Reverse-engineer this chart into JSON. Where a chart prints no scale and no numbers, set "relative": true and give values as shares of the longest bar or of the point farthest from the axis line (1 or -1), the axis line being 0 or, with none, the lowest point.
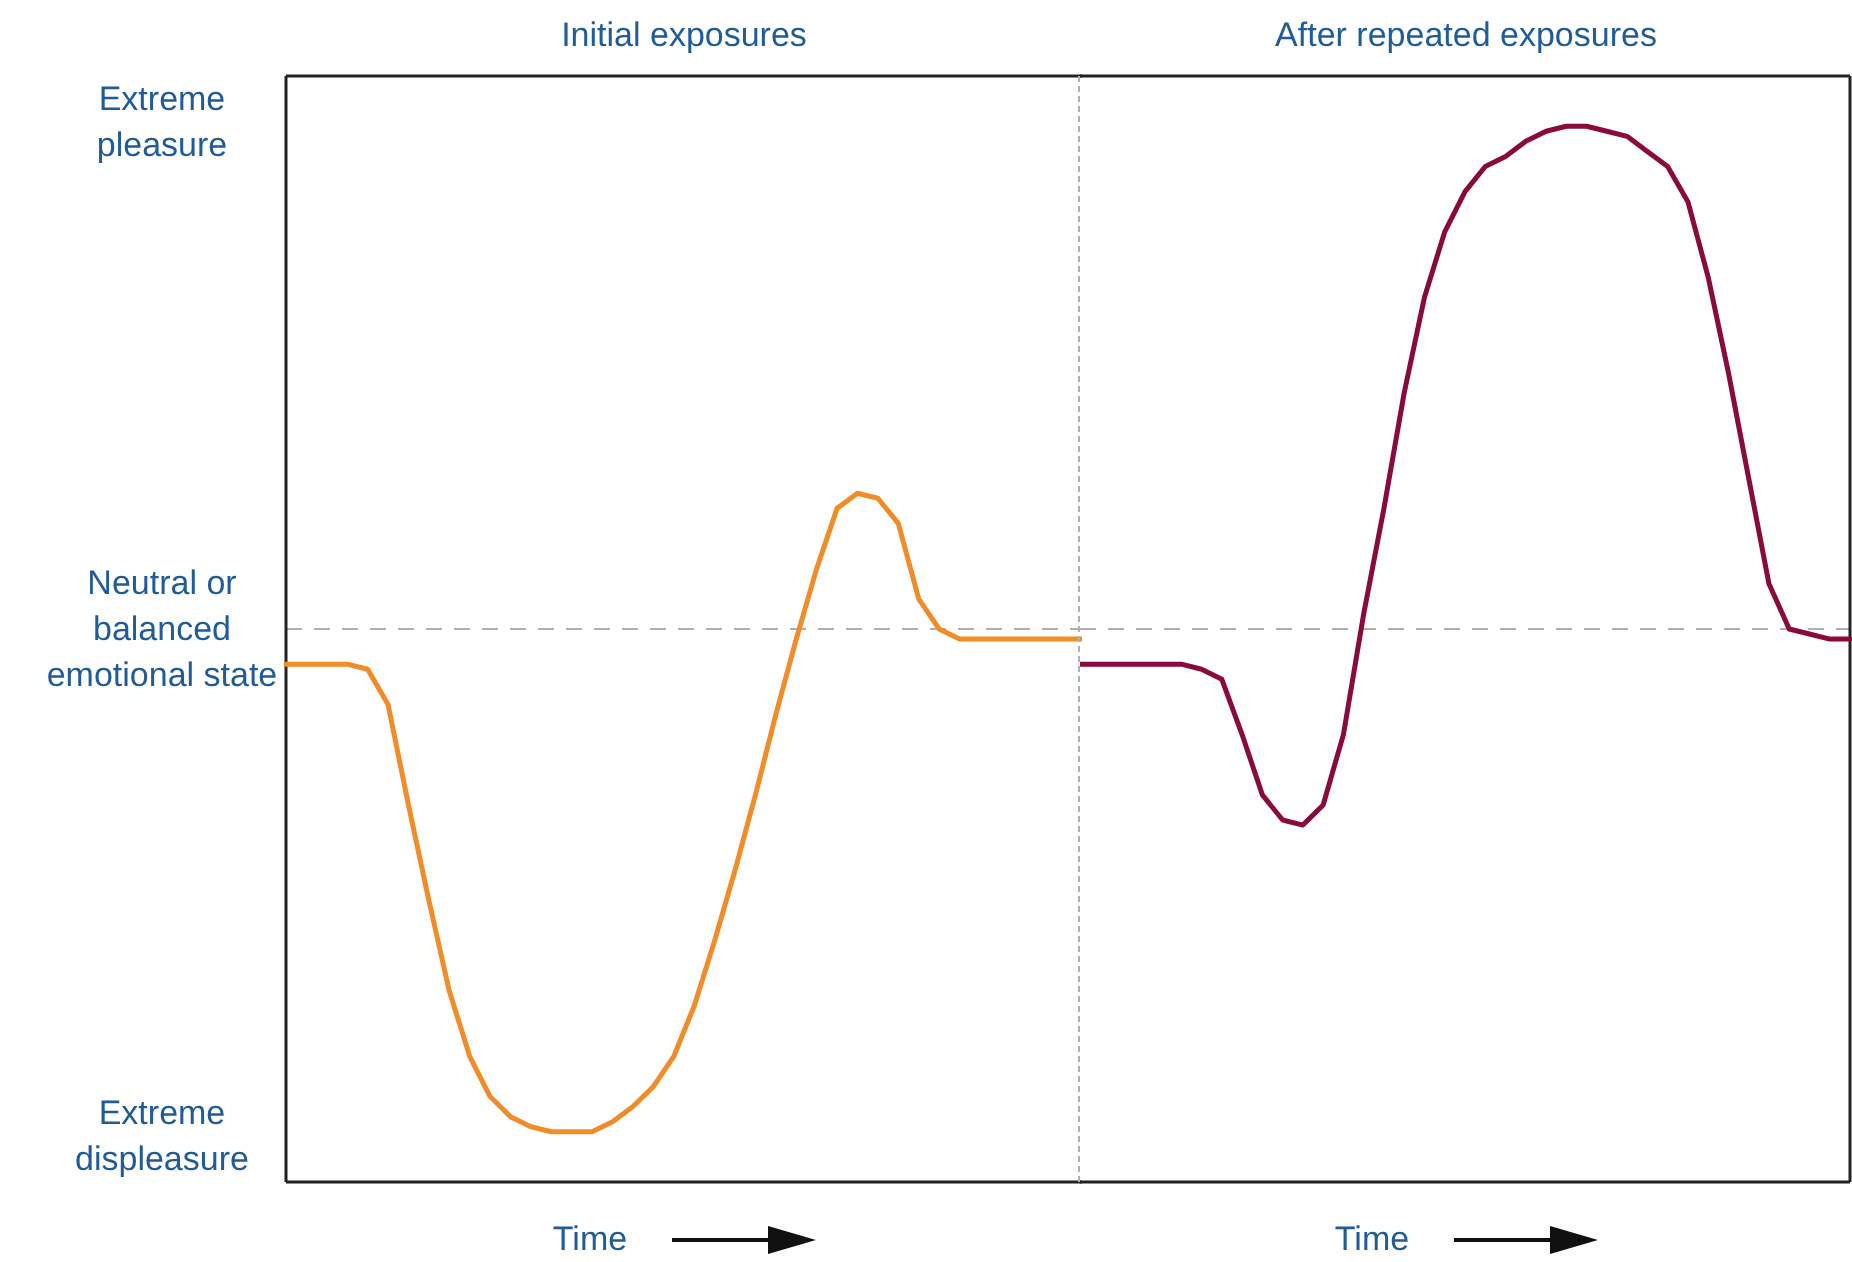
{
  "chart_data": [
    {
      "type": "line",
      "title": "Initial exposures",
      "xlabel": "Time",
      "relative": true,
      "categories": [
        null,
        null,
        null,
        null,
        null,
        null,
        null,
        null,
        null,
        null,
        null,
        null,
        null,
        null,
        null,
        null,
        null,
        null,
        null,
        null,
        null,
        null,
        null,
        null,
        null,
        null,
        null,
        null,
        null,
        null,
        null,
        null,
        null,
        null,
        null,
        null,
        null,
        null,
        null,
        null
      ],
      "series": [
        {
          "color": "#f28c28",
          "values": [
            -0.07,
            -0.07,
            -0.07,
            -0.07,
            -0.08,
            -0.15,
            -0.35,
            -0.54,
            -0.72,
            -0.85,
            -0.93,
            -0.97,
            -0.99,
            -1,
            -1,
            -1,
            -0.98,
            -0.95,
            -0.91,
            -0.85,
            -0.75,
            -0.62,
            -0.48,
            -0.33,
            -0.17,
            -0.02,
            0.12,
            0.24,
            0.27,
            0.26,
            0.21,
            0.06,
            0,
            -0.02,
            -0.02,
            -0.02,
            -0.02,
            -0.02,
            -0.02,
            -0.02
          ]
        }
      ],
      "annotations": [
        "Extreme pleasure",
        "Neutral or balanced emotional state",
        "Extreme displeasure"
      ],
      "ref_lines": [
        {
          "axis": "y",
          "value": 0,
          "color": "#b0b0b0",
          "line_style": "dashed"
        }
      ],
      "marker": "none"
    },
    {
      "type": "line",
      "title": "After repeated exposures",
      "xlabel": "Time",
      "relative": true,
      "categories": [
        null,
        null,
        null,
        null,
        null,
        null,
        null,
        null,
        null,
        null,
        null,
        null,
        null,
        null,
        null,
        null,
        null,
        null,
        null,
        null,
        null,
        null,
        null,
        null,
        null,
        null,
        null,
        null,
        null,
        null,
        null,
        null,
        null,
        null,
        null,
        null,
        null,
        null,
        null
      ],
      "series": [
        {
          "color": "#8b0a3c",
          "values": [
            -0.07,
            -0.07,
            -0.07,
            -0.07,
            -0.07,
            -0.07,
            -0.08,
            -0.1,
            -0.21,
            -0.33,
            -0.38,
            -0.39,
            -0.35,
            -0.21,
            0.03,
            0.24,
            0.47,
            0.66,
            0.79,
            0.87,
            0.92,
            0.94,
            0.97,
            0.99,
            1,
            1,
            0.99,
            0.98,
            0.95,
            0.92,
            0.85,
            0.7,
            0.51,
            0.3,
            0.09,
            0,
            -0.01,
            -0.02,
            -0.02
          ]
        }
      ],
      "ref_lines": [
        {
          "axis": "y",
          "value": 0,
          "color": "#b0b0b0",
          "line_style": "dashed"
        }
      ],
      "marker": "none"
    }
  ]
}
